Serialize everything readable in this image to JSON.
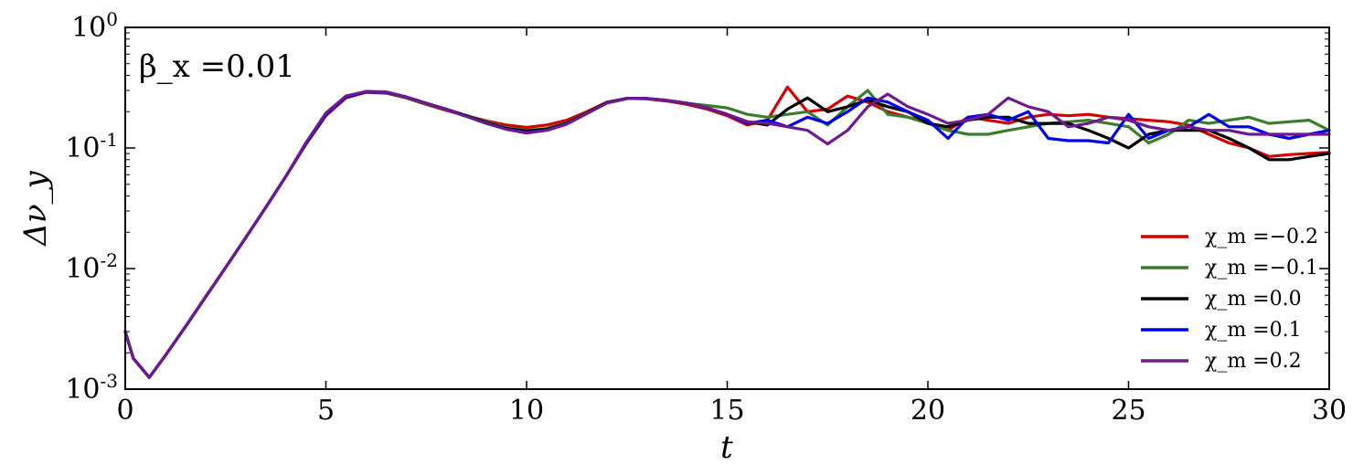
{
  "chart_data": {
    "type": "line",
    "title": "",
    "annotation": "β_x =0.01",
    "xlabel": "t",
    "ylabel": "Δν_y",
    "xlim": [
      0,
      30
    ],
    "ylim": [
      0.001,
      1
    ],
    "yscale": "log",
    "grid": false,
    "legend_position": "lower-right",
    "xticks": [
      0,
      5,
      10,
      15,
      20,
      25,
      30
    ],
    "yticks": [
      {
        "value": 0.001,
        "base": "10",
        "exp": "-3"
      },
      {
        "value": 0.01,
        "base": "10",
        "exp": "-2"
      },
      {
        "value": 0.1,
        "base": "10",
        "exp": "-1"
      },
      {
        "value": 1,
        "base": "10",
        "exp": "0"
      }
    ],
    "series": [
      {
        "name": "χ_m =−0.2",
        "color": "#d40000",
        "x": [
          0.0,
          0.2,
          0.6,
          1.0,
          1.5,
          2.0,
          2.5,
          3.0,
          3.5,
          4.0,
          4.5,
          5.0,
          5.5,
          6.0,
          6.5,
          7.0,
          7.5,
          8.0,
          8.5,
          9.0,
          9.5,
          10.0,
          10.5,
          11.0,
          11.5,
          12.0,
          12.5,
          13.0,
          13.5,
          14.0,
          14.5,
          15.0,
          15.5,
          16.0,
          16.5,
          17.0,
          17.5,
          18.0,
          18.5,
          19.0,
          19.5,
          20.0,
          20.5,
          21.0,
          21.5,
          22.0,
          22.5,
          23.0,
          23.5,
          24.0,
          24.5,
          25.0,
          25.5,
          26.0,
          26.5,
          27.0,
          27.5,
          28.0,
          28.5,
          29.0,
          29.5,
          30.0
        ],
        "y": [
          0.003,
          0.0018,
          0.00125,
          0.0019,
          0.0033,
          0.0058,
          0.0102,
          0.018,
          0.032,
          0.058,
          0.107,
          0.185,
          0.26,
          0.29,
          0.285,
          0.26,
          0.23,
          0.205,
          0.185,
          0.168,
          0.155,
          0.148,
          0.155,
          0.17,
          0.2,
          0.24,
          0.258,
          0.255,
          0.245,
          0.23,
          0.21,
          0.185,
          0.155,
          0.17,
          0.32,
          0.2,
          0.21,
          0.27,
          0.24,
          0.2,
          0.18,
          0.165,
          0.14,
          0.18,
          0.17,
          0.16,
          0.18,
          0.19,
          0.185,
          0.19,
          0.18,
          0.175,
          0.17,
          0.165,
          0.155,
          0.13,
          0.11,
          0.1,
          0.085,
          0.088,
          0.09,
          0.092
        ]
      },
      {
        "name": "χ_m =−0.1",
        "color": "#3a7d2c",
        "x": [
          0.0,
          0.2,
          0.6,
          1.0,
          1.5,
          2.0,
          2.5,
          3.0,
          3.5,
          4.0,
          4.5,
          5.0,
          5.5,
          6.0,
          6.5,
          7.0,
          7.5,
          8.0,
          8.5,
          9.0,
          9.5,
          10.0,
          10.5,
          11.0,
          11.5,
          12.0,
          12.5,
          13.0,
          13.5,
          14.0,
          14.5,
          15.0,
          15.5,
          16.0,
          16.5,
          17.0,
          17.5,
          18.0,
          18.5,
          19.0,
          19.5,
          20.0,
          20.5,
          21.0,
          21.5,
          22.0,
          22.5,
          23.0,
          23.5,
          24.0,
          24.5,
          25.0,
          25.5,
          26.0,
          26.5,
          27.0,
          27.5,
          28.0,
          28.5,
          29.0,
          29.5,
          30.0
        ],
        "y": [
          0.003,
          0.0018,
          0.00125,
          0.0019,
          0.0033,
          0.0058,
          0.0102,
          0.018,
          0.032,
          0.058,
          0.108,
          0.19,
          0.265,
          0.292,
          0.288,
          0.262,
          0.232,
          0.207,
          0.186,
          0.165,
          0.148,
          0.14,
          0.145,
          0.162,
          0.195,
          0.238,
          0.258,
          0.257,
          0.248,
          0.235,
          0.225,
          0.215,
          0.19,
          0.18,
          0.19,
          0.2,
          0.155,
          0.22,
          0.3,
          0.19,
          0.18,
          0.16,
          0.14,
          0.13,
          0.13,
          0.14,
          0.15,
          0.16,
          0.165,
          0.17,
          0.16,
          0.15,
          0.11,
          0.13,
          0.17,
          0.16,
          0.17,
          0.18,
          0.16,
          0.165,
          0.17,
          0.14
        ]
      },
      {
        "name": "χ_m =0.0",
        "color": "#000000",
        "x": [
          0.0,
          0.2,
          0.6,
          1.0,
          1.5,
          2.0,
          2.5,
          3.0,
          3.5,
          4.0,
          4.5,
          5.0,
          5.5,
          6.0,
          6.5,
          7.0,
          7.5,
          8.0,
          8.5,
          9.0,
          9.5,
          10.0,
          10.5,
          11.0,
          11.5,
          12.0,
          12.5,
          13.0,
          13.5,
          14.0,
          14.5,
          15.0,
          15.5,
          16.0,
          16.5,
          17.0,
          17.5,
          18.0,
          18.5,
          19.0,
          19.5,
          20.0,
          20.5,
          21.0,
          21.5,
          22.0,
          22.5,
          23.0,
          23.5,
          24.0,
          24.5,
          25.0,
          25.5,
          26.0,
          26.5,
          27.0,
          27.5,
          28.0,
          28.5,
          29.0,
          29.5,
          30.0
        ],
        "y": [
          0.003,
          0.0018,
          0.00125,
          0.0019,
          0.0033,
          0.0058,
          0.0102,
          0.018,
          0.032,
          0.058,
          0.108,
          0.19,
          0.265,
          0.292,
          0.29,
          0.265,
          0.235,
          0.21,
          0.185,
          0.162,
          0.145,
          0.138,
          0.143,
          0.16,
          0.195,
          0.238,
          0.258,
          0.257,
          0.248,
          0.235,
          0.215,
          0.19,
          0.165,
          0.155,
          0.21,
          0.26,
          0.2,
          0.22,
          0.25,
          0.22,
          0.2,
          0.16,
          0.15,
          0.17,
          0.18,
          0.18,
          0.16,
          0.16,
          0.16,
          0.14,
          0.12,
          0.1,
          0.13,
          0.14,
          0.14,
          0.14,
          0.12,
          0.1,
          0.08,
          0.08,
          0.085,
          0.09
        ]
      },
      {
        "name": "χ_m =0.1",
        "color": "#0000ee",
        "x": [
          0.0,
          0.2,
          0.6,
          1.0,
          1.5,
          2.0,
          2.5,
          3.0,
          3.5,
          4.0,
          4.5,
          5.0,
          5.5,
          6.0,
          6.5,
          7.0,
          7.5,
          8.0,
          8.5,
          9.0,
          9.5,
          10.0,
          10.5,
          11.0,
          11.5,
          12.0,
          12.5,
          13.0,
          13.5,
          14.0,
          14.5,
          15.0,
          15.5,
          16.0,
          16.5,
          17.0,
          17.5,
          18.0,
          18.5,
          19.0,
          19.5,
          20.0,
          20.5,
          21.0,
          21.5,
          22.0,
          22.5,
          23.0,
          23.5,
          24.0,
          24.5,
          25.0,
          25.5,
          26.0,
          26.5,
          27.0,
          27.5,
          28.0,
          28.5,
          29.0,
          29.5,
          30.0
        ],
        "y": [
          0.003,
          0.0018,
          0.00125,
          0.0019,
          0.0033,
          0.0058,
          0.0102,
          0.018,
          0.032,
          0.058,
          0.108,
          0.19,
          0.265,
          0.292,
          0.29,
          0.265,
          0.235,
          0.208,
          0.183,
          0.16,
          0.143,
          0.135,
          0.14,
          0.158,
          0.193,
          0.236,
          0.257,
          0.257,
          0.248,
          0.235,
          0.215,
          0.19,
          0.16,
          0.17,
          0.15,
          0.18,
          0.16,
          0.2,
          0.26,
          0.24,
          0.2,
          0.17,
          0.12,
          0.18,
          0.19,
          0.17,
          0.2,
          0.12,
          0.115,
          0.115,
          0.11,
          0.19,
          0.12,
          0.14,
          0.15,
          0.19,
          0.15,
          0.15,
          0.13,
          0.12,
          0.13,
          0.14
        ]
      },
      {
        "name": "χ_m =0.2",
        "color": "#6e1a8f",
        "x": [
          0.0,
          0.2,
          0.6,
          1.0,
          1.5,
          2.0,
          2.5,
          3.0,
          3.5,
          4.0,
          4.5,
          5.0,
          5.5,
          6.0,
          6.5,
          7.0,
          7.5,
          8.0,
          8.5,
          9.0,
          9.5,
          10.0,
          10.5,
          11.0,
          11.5,
          12.0,
          12.5,
          13.0,
          13.5,
          14.0,
          14.5,
          15.0,
          15.5,
          16.0,
          16.5,
          17.0,
          17.5,
          18.0,
          18.5,
          19.0,
          19.5,
          20.0,
          20.5,
          21.0,
          21.5,
          22.0,
          22.5,
          23.0,
          23.5,
          24.0,
          24.5,
          25.0,
          25.5,
          26.0,
          26.5,
          27.0,
          27.5,
          28.0,
          28.5,
          29.0,
          29.5,
          30.0
        ],
        "y": [
          0.003,
          0.0018,
          0.00125,
          0.0019,
          0.0033,
          0.0058,
          0.0102,
          0.018,
          0.032,
          0.058,
          0.11,
          0.195,
          0.27,
          0.295,
          0.292,
          0.265,
          0.235,
          0.208,
          0.183,
          0.16,
          0.143,
          0.133,
          0.14,
          0.158,
          0.193,
          0.236,
          0.257,
          0.257,
          0.248,
          0.235,
          0.215,
          0.19,
          0.165,
          0.16,
          0.15,
          0.14,
          0.108,
          0.14,
          0.22,
          0.28,
          0.22,
          0.19,
          0.16,
          0.17,
          0.19,
          0.26,
          0.22,
          0.2,
          0.15,
          0.16,
          0.18,
          0.17,
          0.15,
          0.14,
          0.15,
          0.14,
          0.14,
          0.13,
          0.13,
          0.13,
          0.13,
          0.13
        ]
      }
    ]
  }
}
